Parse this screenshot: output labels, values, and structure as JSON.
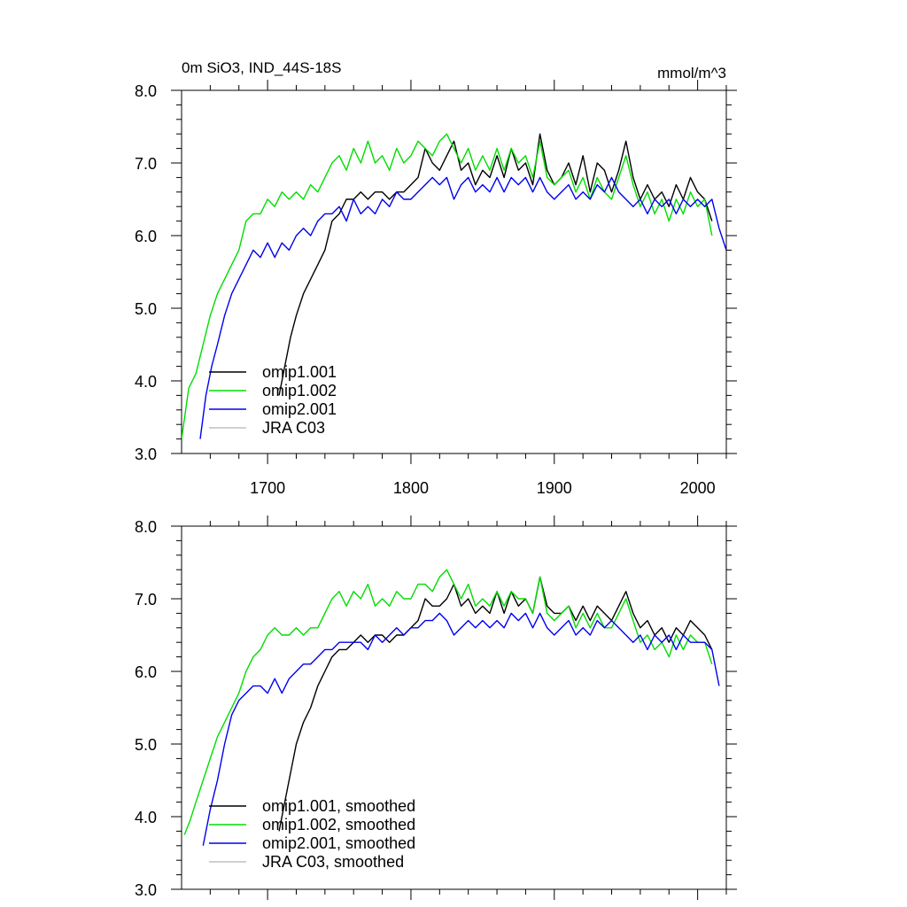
{
  "chart_data": [
    {
      "type": "line",
      "title": "0m SiO3, IND_44S-18S",
      "units": "mmol/m^3",
      "xlabel": "",
      "ylabel": "",
      "xlim": [
        1640,
        2020
      ],
      "ylim": [
        3.0,
        8.0
      ],
      "x_ticks": [
        "1700",
        "1800",
        "1900",
        "2000"
      ],
      "y_ticks": [
        "3.0",
        "4.0",
        "5.0",
        "6.0",
        "7.0",
        "8.0"
      ],
      "legend_position": "bottom-left",
      "series": [
        {
          "name": "omip1.001",
          "color": "#000000",
          "x": [
            1708,
            1712,
            1716,
            1720,
            1725,
            1730,
            1735,
            1740,
            1745,
            1750,
            1755,
            1760,
            1765,
            1770,
            1775,
            1780,
            1785,
            1790,
            1795,
            1800,
            1805,
            1810,
            1815,
            1820,
            1825,
            1830,
            1835,
            1840,
            1845,
            1850,
            1855,
            1860,
            1865,
            1870,
            1875,
            1880,
            1885,
            1890,
            1895,
            1900,
            1905,
            1910,
            1915,
            1920,
            1925,
            1930,
            1935,
            1940,
            1945,
            1950,
            1955,
            1960,
            1965,
            1970,
            1975,
            1980,
            1985,
            1990,
            1995,
            2000,
            2005,
            2010
          ],
          "y": [
            3.8,
            4.2,
            4.6,
            4.9,
            5.2,
            5.4,
            5.6,
            5.8,
            6.2,
            6.3,
            6.5,
            6.5,
            6.6,
            6.5,
            6.6,
            6.6,
            6.5,
            6.6,
            6.6,
            6.7,
            6.8,
            7.2,
            7.0,
            6.9,
            7.1,
            7.3,
            6.9,
            7.0,
            6.7,
            6.9,
            6.8,
            7.1,
            6.8,
            7.2,
            6.9,
            7.0,
            6.7,
            7.4,
            6.9,
            6.7,
            6.8,
            7.0,
            6.7,
            7.1,
            6.6,
            7.0,
            6.9,
            6.6,
            6.9,
            7.3,
            6.8,
            6.5,
            6.7,
            6.5,
            6.6,
            6.4,
            6.7,
            6.5,
            6.8,
            6.6,
            6.5,
            6.2
          ]
        },
        {
          "name": "omip1.002",
          "color": "#00dd00",
          "x": [
            1640,
            1645,
            1650,
            1655,
            1660,
            1665,
            1670,
            1675,
            1680,
            1685,
            1690,
            1695,
            1700,
            1705,
            1710,
            1715,
            1720,
            1725,
            1730,
            1735,
            1740,
            1745,
            1750,
            1755,
            1760,
            1765,
            1770,
            1775,
            1780,
            1785,
            1790,
            1795,
            1800,
            1805,
            1810,
            1815,
            1820,
            1825,
            1830,
            1835,
            1840,
            1845,
            1850,
            1855,
            1860,
            1865,
            1870,
            1875,
            1880,
            1885,
            1890,
            1895,
            1900,
            1905,
            1910,
            1915,
            1920,
            1925,
            1930,
            1935,
            1940,
            1945,
            1950,
            1955,
            1960,
            1965,
            1970,
            1975,
            1980,
            1985,
            1990,
            1995,
            2000,
            2005,
            2010
          ],
          "y": [
            3.2,
            3.9,
            4.1,
            4.5,
            4.9,
            5.2,
            5.4,
            5.6,
            5.8,
            6.2,
            6.3,
            6.3,
            6.5,
            6.4,
            6.6,
            6.5,
            6.6,
            6.5,
            6.7,
            6.6,
            6.8,
            7.0,
            7.1,
            6.9,
            7.2,
            7.0,
            7.3,
            7.0,
            7.1,
            6.9,
            7.2,
            7.0,
            7.1,
            7.3,
            7.2,
            7.1,
            7.3,
            7.4,
            7.2,
            7.0,
            7.2,
            6.9,
            7.1,
            6.9,
            7.2,
            6.9,
            7.2,
            7.0,
            7.1,
            6.8,
            7.3,
            6.8,
            6.7,
            6.8,
            6.9,
            6.6,
            6.8,
            6.5,
            6.8,
            6.6,
            6.5,
            6.8,
            7.1,
            6.7,
            6.4,
            6.6,
            6.3,
            6.5,
            6.2,
            6.5,
            6.3,
            6.6,
            6.4,
            6.5,
            6.0
          ]
        },
        {
          "name": "omip2.001",
          "color": "#0000ee",
          "x": [
            1653,
            1657,
            1661,
            1665,
            1670,
            1675,
            1680,
            1685,
            1690,
            1695,
            1700,
            1705,
            1710,
            1715,
            1720,
            1725,
            1730,
            1735,
            1740,
            1745,
            1750,
            1755,
            1760,
            1765,
            1770,
            1775,
            1780,
            1785,
            1790,
            1795,
            1800,
            1805,
            1810,
            1815,
            1820,
            1825,
            1830,
            1835,
            1840,
            1845,
            1850,
            1855,
            1860,
            1865,
            1870,
            1875,
            1880,
            1885,
            1890,
            1895,
            1900,
            1905,
            1910,
            1915,
            1920,
            1925,
            1930,
            1935,
            1940,
            1945,
            1950,
            1955,
            1960,
            1965,
            1970,
            1975,
            1980,
            1985,
            1990,
            1995,
            2000,
            2005,
            2010,
            2015,
            2020
          ],
          "y": [
            3.2,
            3.8,
            4.2,
            4.5,
            4.9,
            5.2,
            5.4,
            5.6,
            5.8,
            5.7,
            5.9,
            5.7,
            5.9,
            5.8,
            6.0,
            6.1,
            6.0,
            6.2,
            6.3,
            6.3,
            6.4,
            6.2,
            6.5,
            6.3,
            6.4,
            6.3,
            6.5,
            6.4,
            6.6,
            6.5,
            6.5,
            6.6,
            6.7,
            6.8,
            6.7,
            6.8,
            6.5,
            6.7,
            6.8,
            6.6,
            6.7,
            6.6,
            6.8,
            6.6,
            6.8,
            6.7,
            6.8,
            6.6,
            6.8,
            6.6,
            6.5,
            6.6,
            6.7,
            6.5,
            6.6,
            6.5,
            6.7,
            6.6,
            6.8,
            6.6,
            6.5,
            6.4,
            6.5,
            6.3,
            6.5,
            6.4,
            6.5,
            6.3,
            6.5,
            6.4,
            6.5,
            6.4,
            6.5,
            6.1,
            5.8
          ]
        },
        {
          "name": "JRA C03",
          "color": "#c0c0c0",
          "x": [],
          "y": []
        }
      ]
    },
    {
      "type": "line",
      "title": "",
      "xlim": [
        1640,
        2020
      ],
      "ylim": [
        3.0,
        8.0
      ],
      "y_ticks": [
        "3.0",
        "4.0",
        "5.0",
        "6.0",
        "7.0",
        "8.0"
      ],
      "legend_position": "bottom-left",
      "series": [
        {
          "name": "omip1.001, smoothed",
          "color": "#000000",
          "x": [
            1708,
            1712,
            1716,
            1720,
            1725,
            1730,
            1735,
            1740,
            1745,
            1750,
            1755,
            1760,
            1765,
            1770,
            1775,
            1780,
            1785,
            1790,
            1795,
            1800,
            1805,
            1810,
            1815,
            1820,
            1825,
            1830,
            1835,
            1840,
            1845,
            1850,
            1855,
            1860,
            1865,
            1870,
            1875,
            1880,
            1885,
            1890,
            1895,
            1900,
            1905,
            1910,
            1915,
            1920,
            1925,
            1930,
            1935,
            1940,
            1945,
            1950,
            1955,
            1960,
            1965,
            1970,
            1975,
            1980,
            1985,
            1990,
            1995,
            2000,
            2005,
            2010
          ],
          "y": [
            3.8,
            4.2,
            4.6,
            5.0,
            5.3,
            5.5,
            5.8,
            6.0,
            6.2,
            6.3,
            6.3,
            6.4,
            6.5,
            6.4,
            6.5,
            6.5,
            6.4,
            6.5,
            6.5,
            6.6,
            6.7,
            7.0,
            6.9,
            6.9,
            7.0,
            7.2,
            6.9,
            7.0,
            6.8,
            6.9,
            6.8,
            7.1,
            6.8,
            7.1,
            6.9,
            7.0,
            6.8,
            7.3,
            6.9,
            6.8,
            6.8,
            6.9,
            6.7,
            6.9,
            6.7,
            6.9,
            6.8,
            6.7,
            6.9,
            7.1,
            6.8,
            6.6,
            6.7,
            6.5,
            6.6,
            6.4,
            6.6,
            6.5,
            6.7,
            6.6,
            6.5,
            6.3
          ]
        },
        {
          "name": "omip1.002, smoothed",
          "color": "#00dd00",
          "x": [
            1642,
            1646,
            1650,
            1655,
            1660,
            1665,
            1670,
            1675,
            1680,
            1685,
            1690,
            1695,
            1700,
            1705,
            1710,
            1715,
            1720,
            1725,
            1730,
            1735,
            1740,
            1745,
            1750,
            1755,
            1760,
            1765,
            1770,
            1775,
            1780,
            1785,
            1790,
            1795,
            1800,
            1805,
            1810,
            1815,
            1820,
            1825,
            1830,
            1835,
            1840,
            1845,
            1850,
            1855,
            1860,
            1865,
            1870,
            1875,
            1880,
            1885,
            1890,
            1895,
            1900,
            1905,
            1910,
            1915,
            1920,
            1925,
            1930,
            1935,
            1940,
            1945,
            1950,
            1955,
            1960,
            1965,
            1970,
            1975,
            1980,
            1985,
            1990,
            1995,
            2000,
            2005,
            2010
          ],
          "y": [
            3.75,
            3.95,
            4.2,
            4.5,
            4.8,
            5.1,
            5.3,
            5.5,
            5.7,
            6.0,
            6.2,
            6.3,
            6.5,
            6.6,
            6.5,
            6.5,
            6.6,
            6.5,
            6.6,
            6.6,
            6.8,
            7.0,
            7.1,
            6.9,
            7.1,
            7.0,
            7.2,
            6.9,
            7.0,
            6.9,
            7.1,
            7.0,
            7.0,
            7.2,
            7.2,
            7.1,
            7.3,
            7.4,
            7.2,
            7.0,
            7.2,
            6.9,
            7.0,
            6.9,
            7.1,
            6.9,
            7.1,
            7.0,
            7.0,
            6.8,
            7.3,
            6.8,
            6.7,
            6.8,
            6.9,
            6.6,
            6.8,
            6.6,
            6.8,
            6.6,
            6.6,
            6.8,
            7.0,
            6.7,
            6.4,
            6.5,
            6.3,
            6.4,
            6.2,
            6.5,
            6.3,
            6.5,
            6.4,
            6.4,
            6.1
          ]
        },
        {
          "name": "omip2.001, smoothed",
          "color": "#0000ee",
          "x": [
            1655,
            1660,
            1665,
            1670,
            1675,
            1680,
            1685,
            1690,
            1695,
            1700,
            1705,
            1710,
            1715,
            1720,
            1725,
            1730,
            1735,
            1740,
            1745,
            1750,
            1755,
            1760,
            1765,
            1770,
            1775,
            1780,
            1785,
            1790,
            1795,
            1800,
            1805,
            1810,
            1815,
            1820,
            1825,
            1830,
            1835,
            1840,
            1845,
            1850,
            1855,
            1860,
            1865,
            1870,
            1875,
            1880,
            1885,
            1890,
            1895,
            1900,
            1905,
            1910,
            1915,
            1920,
            1925,
            1930,
            1935,
            1940,
            1945,
            1950,
            1955,
            1960,
            1965,
            1970,
            1975,
            1980,
            1985,
            1990,
            1995,
            2000,
            2005,
            2010,
            2015
          ],
          "y": [
            3.6,
            4.1,
            4.5,
            5.0,
            5.4,
            5.6,
            5.7,
            5.8,
            5.8,
            5.7,
            5.9,
            5.7,
            5.9,
            6.0,
            6.1,
            6.1,
            6.2,
            6.3,
            6.3,
            6.4,
            6.4,
            6.4,
            6.4,
            6.3,
            6.5,
            6.4,
            6.5,
            6.6,
            6.5,
            6.6,
            6.6,
            6.7,
            6.7,
            6.8,
            6.7,
            6.5,
            6.6,
            6.7,
            6.6,
            6.7,
            6.6,
            6.7,
            6.6,
            6.8,
            6.7,
            6.8,
            6.6,
            6.8,
            6.6,
            6.5,
            6.6,
            6.7,
            6.5,
            6.6,
            6.5,
            6.7,
            6.6,
            6.7,
            6.6,
            6.5,
            6.4,
            6.5,
            6.3,
            6.5,
            6.4,
            6.5,
            6.3,
            6.5,
            6.4,
            6.4,
            6.4,
            6.3,
            5.8
          ]
        },
        {
          "name": "JRA C03, smoothed",
          "color": "#c0c0c0",
          "x": [],
          "y": []
        }
      ]
    }
  ]
}
